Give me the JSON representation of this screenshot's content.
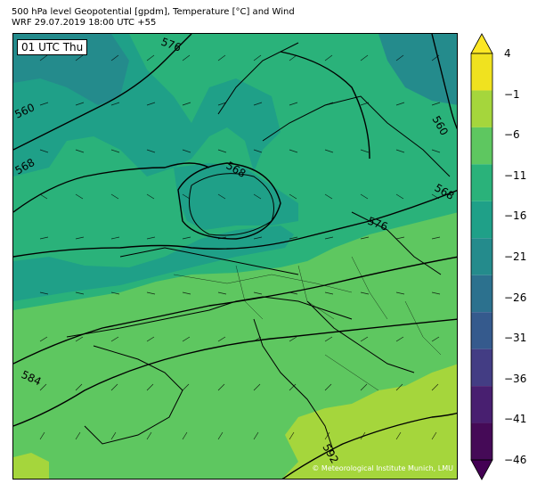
{
  "title_line1": "500 hPa level Geopotential [gpdm], Temperature [°C] and Wind",
  "title_line2": "WRF 29.07.2019 18:00 UTC +55",
  "time_label": "01 UTC Thu",
  "copyright": "© Meteorological Institute Munich, LMU",
  "contour_labels": [
    "576",
    "560",
    "560",
    "568",
    "568",
    "568",
    "576",
    "584",
    "592"
  ],
  "colorbar": {
    "ticks": [
      "4",
      "−1",
      "−6",
      "−11",
      "−16",
      "−21",
      "−26",
      "−31",
      "−36",
      "−41",
      "−46"
    ],
    "colors": [
      "#f0e21f",
      "#a5d63c",
      "#5ec760",
      "#2ab27a",
      "#1fa088",
      "#248b8c",
      "#2c718e",
      "#355a8d",
      "#433d84",
      "#481f70",
      "#450a57"
    ],
    "extend_top": "#fde725",
    "extend_bottom": "#440154"
  },
  "fill_colors": {
    "c1": "#5ec760",
    "c2": "#2ab27a",
    "c3": "#1fa088",
    "c4": "#248b8c",
    "c0": "#a5d63c"
  }
}
